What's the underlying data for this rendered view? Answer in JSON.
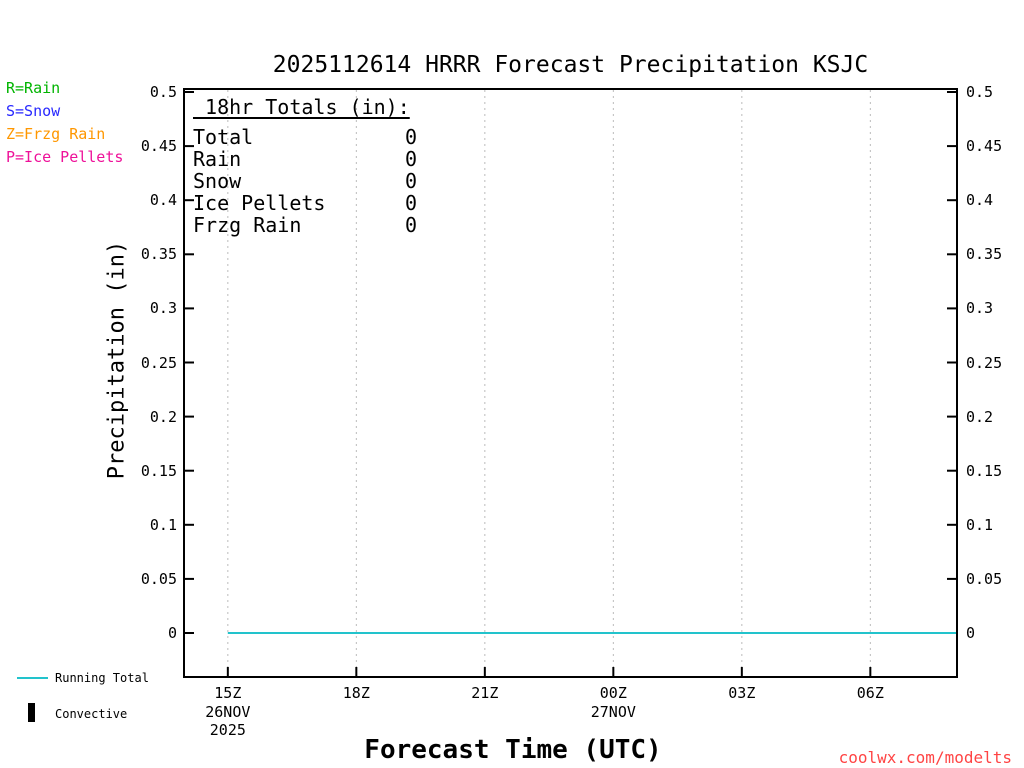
{
  "legend": {
    "items": [
      {
        "id": "rain",
        "label": "R=Rain",
        "color": "#00b400"
      },
      {
        "id": "snow",
        "label": "S=Snow",
        "color": "#2828ff"
      },
      {
        "id": "frzg-rain",
        "label": "Z=Frzg Rain",
        "color": "#ff9700"
      },
      {
        "id": "ice-pellets",
        "label": "P=Ice Pellets",
        "color": "#ee1199"
      }
    ]
  },
  "totals_box": {
    "heading": " 18hr Totals (in):",
    "rows": [
      {
        "label": "Total",
        "value": "0"
      },
      {
        "label": "Rain",
        "value": "0"
      },
      {
        "label": "Snow",
        "value": "0"
      },
      {
        "label": "Ice Pellets",
        "value": "0"
      },
      {
        "label": "Frzg Rain",
        "value": "0"
      }
    ]
  },
  "bottom_legend": {
    "running_total_label": "Running Total",
    "convective_label": "Convective",
    "convective_color": "#000000"
  },
  "footer": {
    "credit": "coolwx.com/modelts",
    "color": "#ff4444"
  },
  "chart_data": {
    "type": "line",
    "title": "2025112614 HRRR Forecast Precipitation KSJC",
    "xlabel": "Forecast Time (UTC)",
    "ylabel": "Precipitation (in)",
    "ylim": [
      0,
      0.5
    ],
    "xlim_hours": [
      14,
      32
    ],
    "grid": "vertical-dotted",
    "grid_color": "#bbbbbb",
    "ytick_values": [
      0,
      0.05,
      0.1,
      0.15,
      0.2,
      0.25,
      0.3,
      0.35,
      0.4,
      0.45,
      0.5
    ],
    "ytick_labels": [
      "0",
      "0.05",
      "0.1",
      "0.15",
      "0.2",
      "0.25",
      "0.3",
      "0.35",
      "0.4",
      "0.45",
      "0.5"
    ],
    "xticks": [
      {
        "hour": 15,
        "label": "15Z",
        "sub": [
          "26NOV",
          "2025"
        ]
      },
      {
        "hour": 18,
        "label": "18Z",
        "sub": []
      },
      {
        "hour": 21,
        "label": "21Z",
        "sub": []
      },
      {
        "hour": 24,
        "label": "00Z",
        "sub": [
          "27NOV"
        ]
      },
      {
        "hour": 27,
        "label": "03Z",
        "sub": []
      },
      {
        "hour": 30,
        "label": "06Z",
        "sub": []
      }
    ],
    "x_hours": [
      15,
      16,
      17,
      18,
      19,
      20,
      21,
      22,
      23,
      24,
      25,
      26,
      27,
      28,
      29,
      30,
      31,
      32
    ],
    "series": [
      {
        "name": "Running Total",
        "color": "#22c3cc",
        "values": [
          0,
          0,
          0,
          0,
          0,
          0,
          0,
          0,
          0,
          0,
          0,
          0,
          0,
          0,
          0,
          0,
          0,
          0
        ]
      }
    ],
    "legend_position": "bottom-left"
  }
}
